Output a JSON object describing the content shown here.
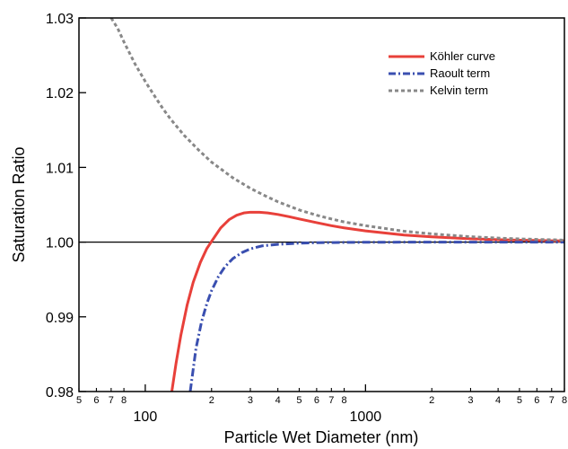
{
  "chart_data": {
    "type": "line",
    "title": "",
    "xlabel": "Particle Wet Diameter (nm)",
    "ylabel": "Saturation Ratio",
    "x_scale": "log",
    "xlim": [
      50,
      8000
    ],
    "ylim": [
      0.98,
      1.03
    ],
    "y_ticks": [
      "0.98",
      "0.99",
      "1.00",
      "1.01",
      "1.02",
      "1.03"
    ],
    "x_major_ticks": [
      {
        "value": 100,
        "label": "100"
      },
      {
        "value": 1000,
        "label": "1000"
      }
    ],
    "x_minor_labels": [
      {
        "value": 50,
        "label": "5"
      },
      {
        "value": 60,
        "label": "6"
      },
      {
        "value": 70,
        "label": "7"
      },
      {
        "value": 80,
        "label": "8"
      },
      {
        "value": 200,
        "label": "2"
      },
      {
        "value": 300,
        "label": "3"
      },
      {
        "value": 400,
        "label": "4"
      },
      {
        "value": 500,
        "label": "5"
      },
      {
        "value": 600,
        "label": "6"
      },
      {
        "value": 700,
        "label": "7"
      },
      {
        "value": 800,
        "label": "8"
      },
      {
        "value": 2000,
        "label": "2"
      },
      {
        "value": 3000,
        "label": "3"
      },
      {
        "value": 4000,
        "label": "4"
      },
      {
        "value": 5000,
        "label": "5"
      },
      {
        "value": 6000,
        "label": "6"
      },
      {
        "value": 7000,
        "label": "7"
      },
      {
        "value": 8000,
        "label": "8"
      }
    ],
    "reference_line": {
      "y": 1.0,
      "color": "#000000"
    },
    "legend_position": "top-right",
    "series": [
      {
        "name": "Köhler curve",
        "color": "#e8403a",
        "style": "solid",
        "x": [
          132,
          138,
          145,
          155,
          165,
          178,
          190,
          200,
          220,
          240,
          260,
          280,
          300,
          330,
          360,
          400,
          450,
          500,
          600,
          700,
          800,
          1000,
          1500,
          2000,
          3000,
          4000,
          5000,
          6000,
          7000,
          8000
        ],
        "y": [
          0.98,
          0.9838,
          0.9875,
          0.9916,
          0.9946,
          0.9973,
          0.9991,
          1.0001,
          1.0019,
          1.003,
          1.0036,
          1.0039,
          1.004,
          1.004,
          1.0039,
          1.0037,
          1.0034,
          1.0031,
          1.0026,
          1.0022,
          1.0019,
          1.0015,
          1.00095,
          1.0007,
          1.00045,
          1.00033,
          1.00026,
          1.00022,
          1.00018,
          1.00016
        ]
      },
      {
        "name": "Raoult term",
        "color": "#3a4fb0",
        "style": "dash-dot",
        "x": [
          160,
          170,
          180,
          190,
          200,
          215,
          230,
          250,
          275,
          300,
          340,
          400,
          500,
          600,
          800,
          1000,
          2000,
          4000,
          8000
        ],
        "y": [
          0.98,
          0.9858,
          0.9893,
          0.9917,
          0.9935,
          0.9954,
          0.9967,
          0.9978,
          0.9986,
          0.9991,
          0.9995,
          0.9997,
          0.99986,
          0.99992,
          0.99996,
          0.99998,
          1.0,
          1.0,
          1.0
        ]
      },
      {
        "name": "Kelvin term",
        "color": "#888888",
        "style": "dashed",
        "x": [
          70,
          75,
          80,
          90,
          100,
          110,
          120,
          130,
          150,
          175,
          200,
          250,
          300,
          350,
          400,
          500,
          600,
          700,
          800,
          1000,
          1500,
          2000,
          3000,
          4000,
          5000,
          6000,
          7000,
          8000
        ],
        "y": [
          1.03,
          1.0286,
          1.0268,
          1.0238,
          1.0215,
          1.0196,
          1.0179,
          1.0165,
          1.0143,
          1.0123,
          1.0107,
          1.0086,
          1.0072,
          1.0062,
          1.0054,
          1.0043,
          1.0036,
          1.0031,
          1.0027,
          1.0022,
          1.00145,
          1.0011,
          1.00072,
          1.00054,
          1.00043,
          1.00036,
          1.00031,
          1.00027
        ]
      }
    ]
  }
}
